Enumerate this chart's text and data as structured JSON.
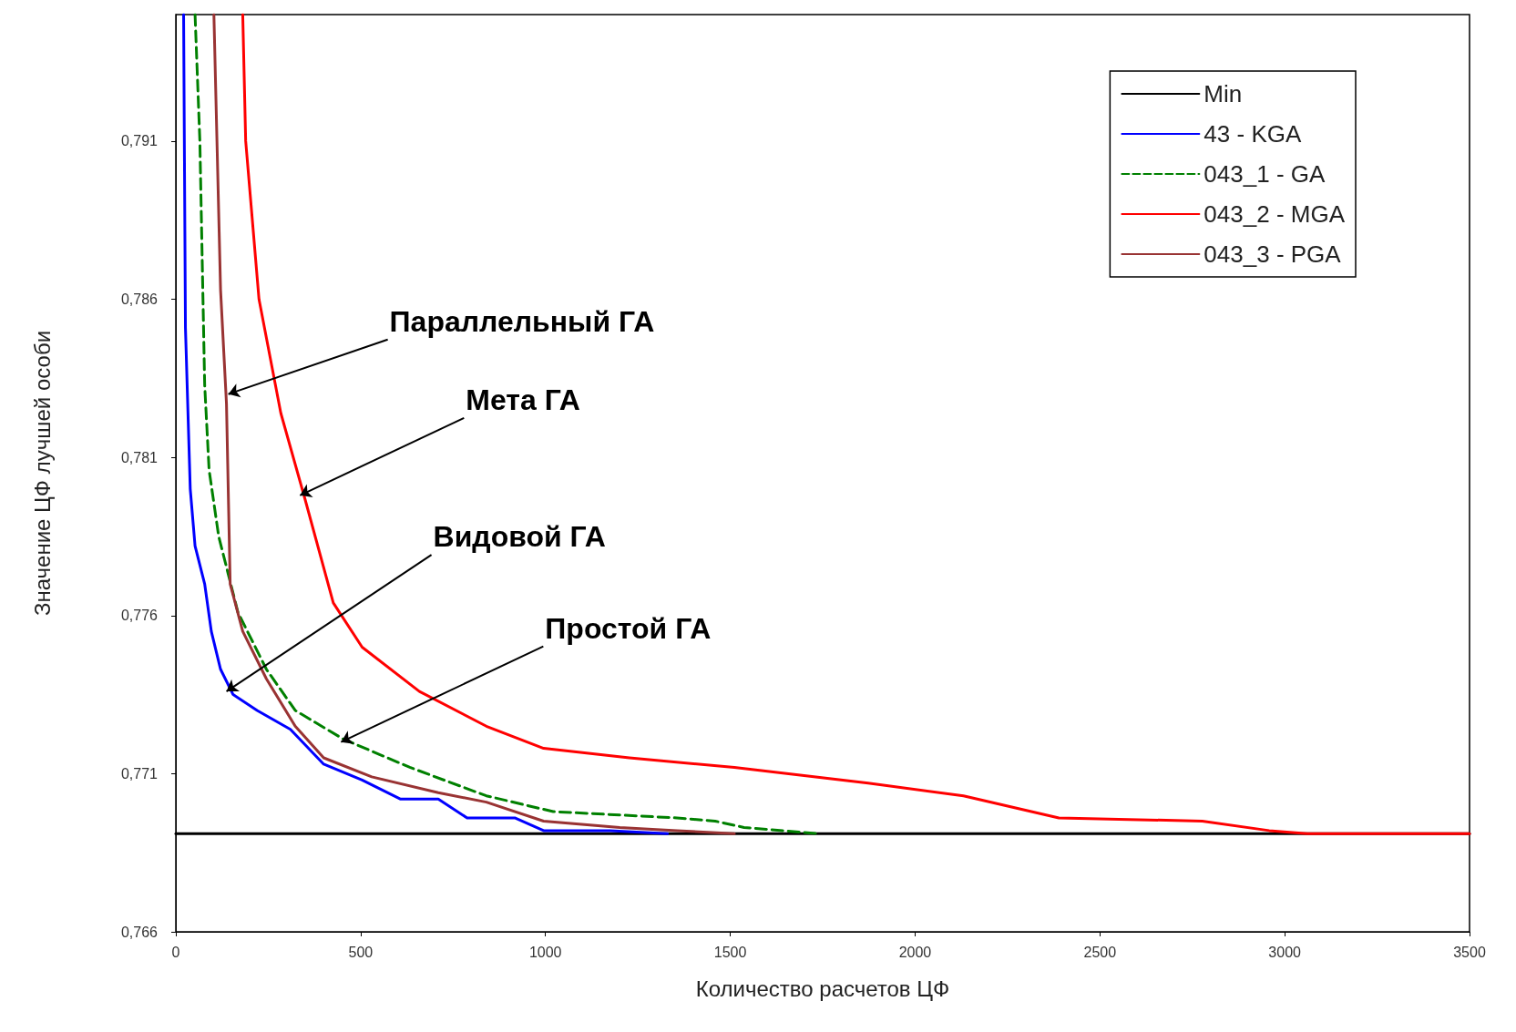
{
  "chart_data": {
    "type": "line",
    "xlabel": "Количество расчетов ЦФ",
    "ylabel": "Значение ЦФ лучшей особи",
    "xlim": [
      0,
      3500
    ],
    "xticks": [
      0,
      500,
      1000,
      1500,
      2000,
      2500,
      3000,
      3500
    ],
    "ylim": [
      0.766,
      0.795
    ],
    "yticks": [
      {
        "value": 0.766,
        "label": "0,766"
      },
      {
        "value": 0.771,
        "label": "0,771"
      },
      {
        "value": 0.776,
        "label": "0,776"
      },
      {
        "value": 0.781,
        "label": "0,781"
      },
      {
        "value": 0.786,
        "label": "0,786"
      },
      {
        "value": 0.791,
        "label": "0,791"
      }
    ],
    "grid": false,
    "legend": "top right",
    "marker": "none",
    "series": [
      {
        "name": "Min",
        "color": "#000000",
        "line_style": "solid",
        "x": [
          0,
          3500
        ],
        "values": [
          0.7691,
          0.7691
        ]
      },
      {
        "name": "43 - KGA",
        "color": "#0000ff",
        "line_style": "solid",
        "x": [
          21,
          26,
          39,
          52,
          78,
          96,
          121,
          155,
          220,
          310,
          400,
          504,
          607,
          710,
          788,
          917,
          995,
          1175,
          1330
        ],
        "values": [
          0.795,
          0.7851,
          0.78,
          0.7782,
          0.777,
          0.7755,
          0.7743,
          0.7735,
          0.773,
          0.7724,
          0.7713,
          0.7708,
          0.7702,
          0.7702,
          0.7696,
          0.7696,
          0.7692,
          0.7692,
          0.7691
        ]
      },
      {
        "name": "043_1 - GA",
        "color": "#008000",
        "line_style": "dashed",
        "x": [
          52,
          65,
          78,
          90,
          116,
          168,
          245,
          323,
          452,
          633,
          840,
          1021,
          1356,
          1459,
          1537,
          1744
        ],
        "values": [
          0.795,
          0.791,
          0.7833,
          0.7806,
          0.7785,
          0.7761,
          0.7743,
          0.773,
          0.7721,
          0.7712,
          0.7703,
          0.7698,
          0.7696,
          0.7695,
          0.7693,
          0.7691
        ]
      },
      {
        "name": "043_2 - MGA",
        "color": "#ff0000",
        "line_style": "solid",
        "x": [
          181,
          189,
          225,
          284,
          349,
          426,
          504,
          659,
          840,
          995,
          1227,
          1511,
          1873,
          2131,
          2389,
          2777,
          2958,
          3061,
          3500
        ],
        "values": [
          0.795,
          0.791,
          0.786,
          0.7824,
          0.7797,
          0.7764,
          0.775,
          0.7736,
          0.7725,
          0.7718,
          0.7715,
          0.7712,
          0.7707,
          0.7703,
          0.7696,
          0.7695,
          0.7692,
          0.7691,
          0.7691
        ]
      },
      {
        "name": "043_3 - PGA",
        "color": "#993333",
        "line_style": "solid",
        "x": [
          103,
          121,
          137,
          147,
          181,
          245,
          323,
          400,
          530,
          710,
          840,
          995,
          1201,
          1356,
          1511
        ],
        "values": [
          0.795,
          0.7863,
          0.7827,
          0.777,
          0.7755,
          0.774,
          0.7725,
          0.7715,
          0.7709,
          0.7704,
          0.7701,
          0.7695,
          0.7693,
          0.7692,
          0.7691
        ]
      }
    ],
    "annotations": [
      {
        "text": "Параллельный ГА",
        "x": 142,
        "y": 0.783
      },
      {
        "text": "Мета ГА",
        "x": 336,
        "y": 0.7798
      },
      {
        "text": "Видовой ГА",
        "x": 137,
        "y": 0.7736
      },
      {
        "text": "Простой ГА",
        "x": 447,
        "y": 0.772
      }
    ]
  }
}
